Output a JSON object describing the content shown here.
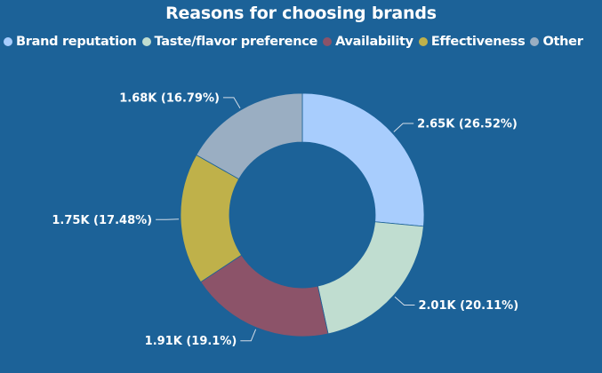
{
  "chart_data": {
    "type": "pie",
    "variant": "donut",
    "title": "Reasons for choosing brands",
    "legend_position": "top",
    "categories": [
      "Brand reputation",
      "Taste/flavor preference",
      "Availability",
      "Effectiveness",
      "Other"
    ],
    "values": [
      2650,
      2010,
      1910,
      1750,
      1680
    ],
    "percents": [
      26.52,
      20.11,
      19.1,
      17.48,
      16.79
    ],
    "data_labels": [
      "2.65K (26.52%)",
      "2.01K (20.11%)",
      "1.91K (19.1%)",
      "1.75K (17.48%)",
      "1.68K (16.79%)"
    ],
    "colors": [
      "#a8cdfd",
      "#c0ddd0",
      "#8c5369",
      "#bfb14a",
      "#9aaec2"
    ]
  }
}
